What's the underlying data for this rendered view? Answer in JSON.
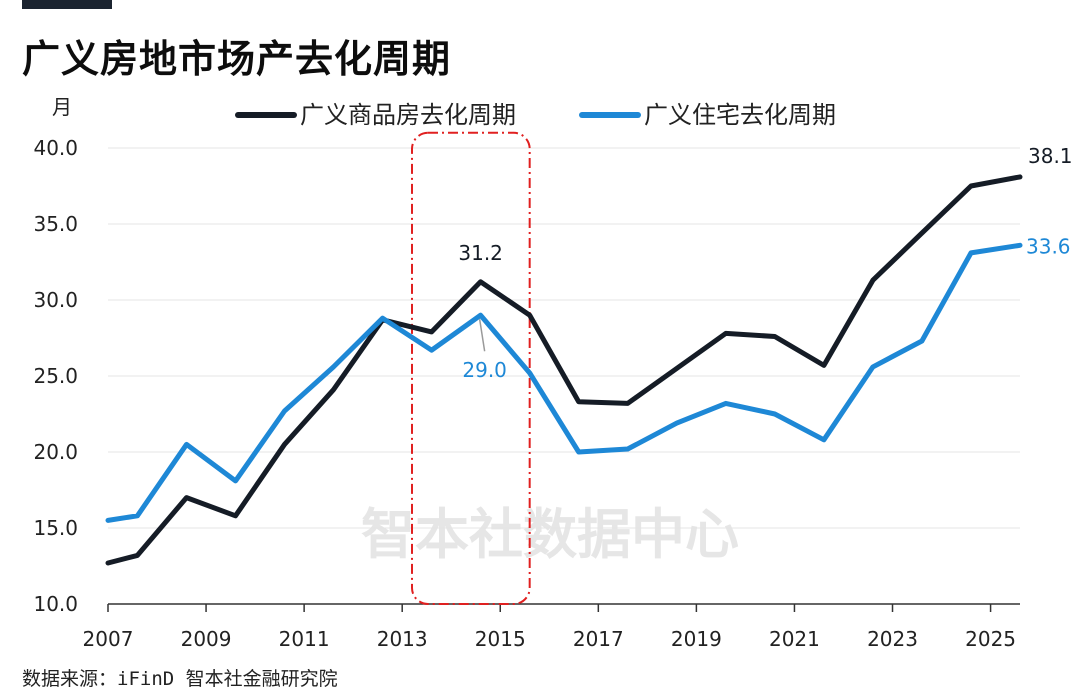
{
  "title": "广义房地市场产去化周期",
  "source": "数据来源：iFinD 智本社金融研究院",
  "watermark": "智本社数据中心",
  "chart_data": {
    "type": "line",
    "ylabel": "月",
    "ylim": [
      10,
      40
    ],
    "yticks": [
      "10.0",
      "15.0",
      "20.0",
      "25.0",
      "30.0",
      "35.0",
      "40.0"
    ],
    "xticks": [
      "2007",
      "2009",
      "2011",
      "2013",
      "2015",
      "2017",
      "2019",
      "2021",
      "2023",
      "2025"
    ],
    "x": [
      2007,
      2007.6,
      2008.6,
      2009.6,
      2010.6,
      2011.6,
      2012.6,
      2013.6,
      2014.6,
      2015.6,
      2016.6,
      2017.6,
      2018.6,
      2019.6,
      2020.6,
      2021.6,
      2022.6,
      2023.6,
      2024.6,
      2025.6
    ],
    "legend_position": "top",
    "grid": true,
    "series": [
      {
        "name": "广义商品房去化周期",
        "color": "#151c26",
        "values": [
          12.7,
          13.2,
          17.0,
          15.8,
          20.5,
          24.1,
          28.7,
          27.9,
          31.2,
          29.0,
          23.3,
          23.2,
          25.5,
          27.8,
          27.6,
          25.7,
          31.3,
          34.4,
          37.5,
          38.1
        ]
      },
      {
        "name": "广义住宅去化周期",
        "color": "#1e88d6",
        "values": [
          15.5,
          15.8,
          20.5,
          18.1,
          22.7,
          25.6,
          28.8,
          26.7,
          29.0,
          25.2,
          20.0,
          20.2,
          21.9,
          23.2,
          22.5,
          20.8,
          25.6,
          27.3,
          33.1,
          33.6
        ]
      }
    ],
    "data_labels": [
      {
        "text": "38.1",
        "series": 0,
        "index": 19
      },
      {
        "text": "33.6",
        "series": 1,
        "index": 19
      },
      {
        "text": "31.2",
        "series": 0,
        "index": 8
      },
      {
        "text": "29.0",
        "series": 1,
        "index": 8
      }
    ],
    "highlight": {
      "x_from": 2013.2,
      "x_to": 2015.6,
      "y_from": 10,
      "y_to": 41.0,
      "color": "#e02020"
    }
  }
}
